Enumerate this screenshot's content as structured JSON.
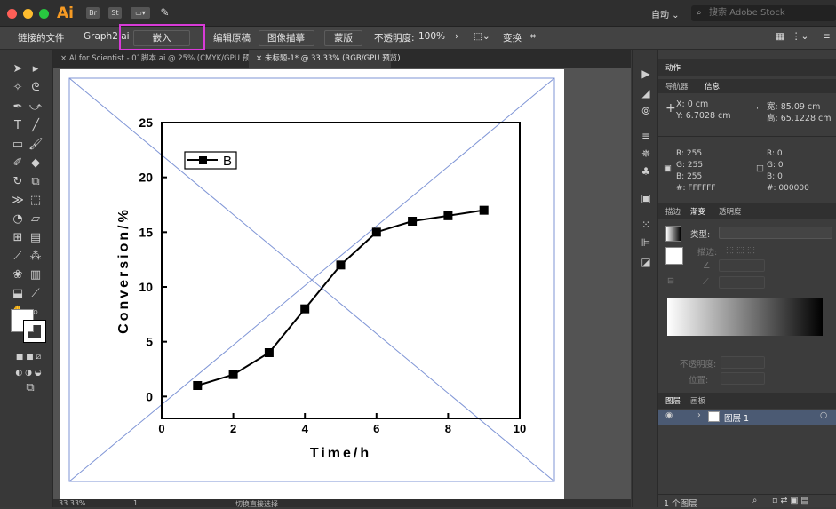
{
  "titlebar": {
    "app_logo": "Ai",
    "icons": [
      "Br",
      "St",
      "layout-icon",
      "brush-icon"
    ],
    "workspace": "自动 ⌄",
    "stock_search_placeholder": "搜索 Adobe Stock",
    "traffic_colors": [
      "#ff5f57",
      "#febc2e",
      "#28c840"
    ]
  },
  "controlbar": {
    "linked_file": "链接的文件",
    "file_name": "Graph2.ai",
    "embed": "嵌入",
    "edit_original": "编辑原稿",
    "image_trace": "图像描摹",
    "mask": "蒙版",
    "opacity_label": "不透明度:",
    "opacity_value": "100%",
    "transform": "变换",
    "highlight_color": "#d83bd8"
  },
  "tabs": [
    {
      "label": "AI for Scientist - 01脚本.ai @ 25% (CMYK/GPU 预览)",
      "active": false
    },
    {
      "label": "未标题-1* @ 33.33% (RGB/GPU 预览)",
      "active": true
    }
  ],
  "statusbar": {
    "zoom": "33.33%",
    "page": "1",
    "tool_hint": "切换直接选择"
  },
  "panels": {
    "top_tab": "动作",
    "info_tabs": [
      "导航器",
      "信息"
    ],
    "info": {
      "x": "X: 0 cm",
      "y": "Y: 6.7028 cm",
      "w": "宽: 85.09 cm",
      "h": "高: 65.1228 cm",
      "fill": {
        "r": "R: 255",
        "g": "G: 255",
        "b": "B: 255",
        "hex": "#: FFFFFF"
      },
      "stroke": {
        "r": "R: 0",
        "g": "G: 0",
        "b": "B: 0",
        "hex": "#: 000000"
      }
    },
    "gradient_tabs": [
      "描边",
      "渐变",
      "透明度"
    ],
    "gradient": {
      "type_label": "类型:",
      "stroke_label": "描边:",
      "opacity_label": "不透明度:",
      "position_label": "位置:"
    },
    "layer_tabs": [
      "图层",
      "画板"
    ],
    "layer_name": "图层 1",
    "layer_count": "1 个图层"
  },
  "chart_data": {
    "type": "line",
    "series": [
      {
        "name": "B",
        "x": [
          1,
          2,
          3,
          4,
          5,
          6,
          7,
          8,
          9
        ],
        "values": [
          1,
          2,
          4,
          8,
          12,
          15,
          16,
          16.5,
          17
        ]
      }
    ],
    "xlabel": "Time/h",
    "ylabel": "Conversion/%",
    "xlim": [
      0,
      10
    ],
    "ylim": [
      -2,
      25
    ],
    "xticks": [
      0,
      2,
      4,
      6,
      8,
      10
    ],
    "yticks": [
      0,
      5,
      10,
      15,
      20,
      25
    ],
    "legend_position": "top-left",
    "grid": false
  }
}
